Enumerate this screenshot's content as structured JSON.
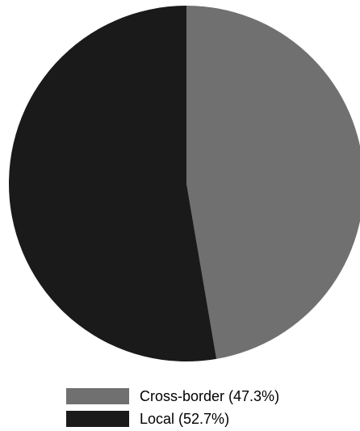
{
  "chart_data": {
    "type": "pie",
    "slices": [
      {
        "label": "Cross-border",
        "value": 47.3,
        "color": "#707070"
      },
      {
        "label": "Local",
        "value": 52.7,
        "color": "#1a1a1a"
      }
    ],
    "start_angle_deg": 0,
    "direction": "clockwise",
    "legend": {
      "placement": "bottom",
      "items": [
        {
          "label": "Cross-border (47.3%)",
          "color": "#707070"
        },
        {
          "label": "Local (52.7%)",
          "color": "#1a1a1a"
        }
      ]
    }
  }
}
